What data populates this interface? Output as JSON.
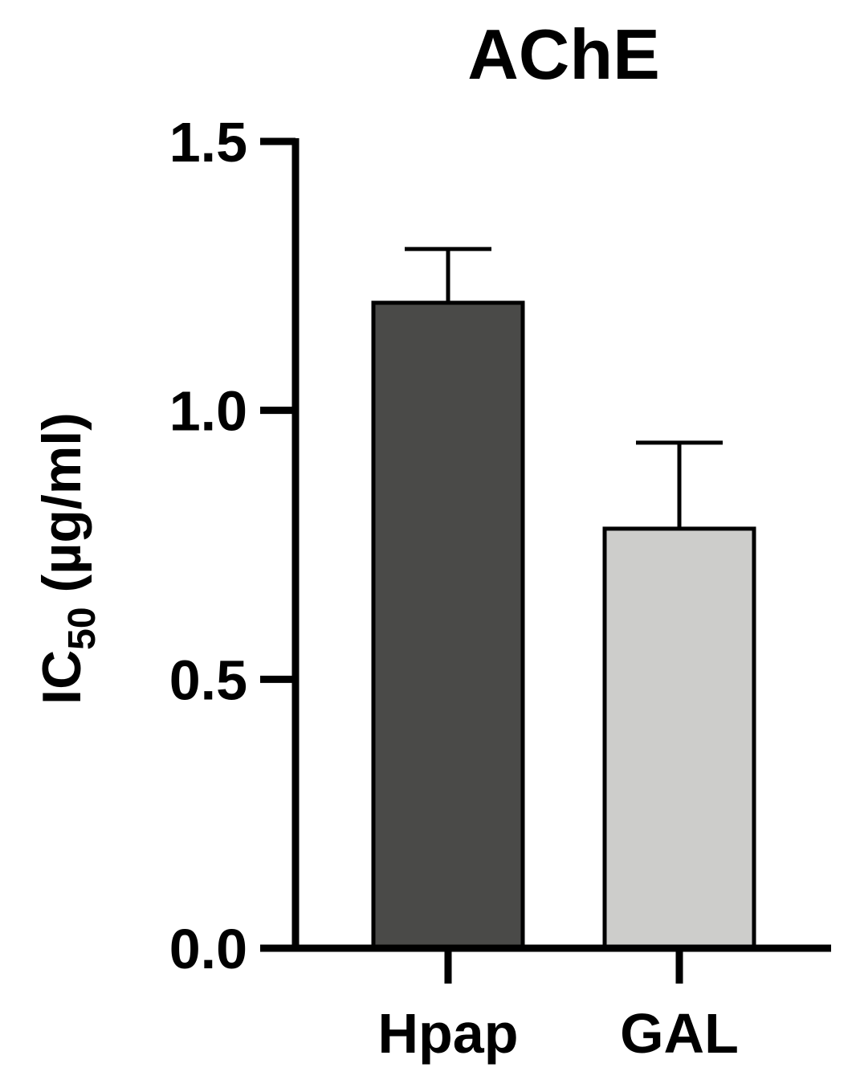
{
  "chart_data": {
    "type": "bar",
    "title": "AChE",
    "ylabel": {
      "main": "IC",
      "sub": "50",
      "unit": "(µg/ml)"
    },
    "xlabel": "",
    "categories": [
      "Hpap",
      "GAL"
    ],
    "values": [
      1.2,
      0.78
    ],
    "errors": [
      0.1,
      0.16
    ],
    "colors": [
      "#4a4a48",
      "#cdcdcb"
    ],
    "ylim": [
      0,
      1.5
    ],
    "yticks": [
      {
        "value": 0,
        "label": "0.0"
      },
      {
        "value": 0.5,
        "label": "0.5"
      },
      {
        "value": 1.0,
        "label": "1.0"
      },
      {
        "value": 1.5,
        "label": "1.5"
      }
    ],
    "grid": false,
    "legend": "none"
  }
}
